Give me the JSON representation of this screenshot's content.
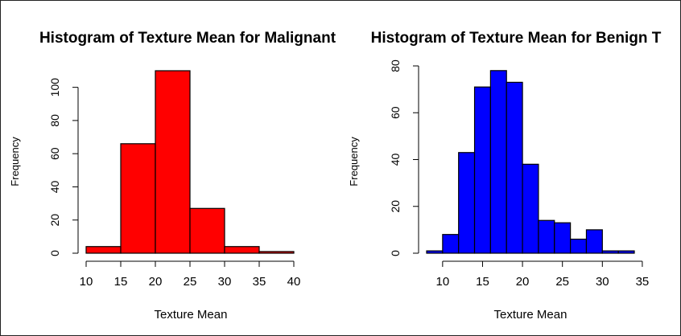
{
  "chart_data": [
    {
      "type": "bar",
      "title": "Histogram of Texture Mean for Malignant",
      "xlabel": "Texture Mean",
      "ylabel": "Frequency",
      "bins": [
        [
          10,
          15
        ],
        [
          15,
          20
        ],
        [
          20,
          25
        ],
        [
          25,
          30
        ],
        [
          30,
          35
        ],
        [
          35,
          40
        ]
      ],
      "values": [
        4,
        66,
        110,
        27,
        4,
        1
      ],
      "fill_color": "#ff0000",
      "xticks": [
        10,
        15,
        20,
        25,
        30,
        35,
        40
      ],
      "yticks": [
        0,
        20,
        40,
        60,
        80,
        100
      ],
      "xlim": [
        10,
        40
      ],
      "ylim": [
        0,
        110
      ],
      "grid": false
    },
    {
      "type": "bar",
      "title": "Histogram of Texture Mean for Benign T",
      "xlabel": "Texture Mean",
      "ylabel": "Frequency",
      "bins": [
        [
          8,
          10
        ],
        [
          10,
          12
        ],
        [
          12,
          14
        ],
        [
          14,
          16
        ],
        [
          16,
          18
        ],
        [
          18,
          20
        ],
        [
          20,
          22
        ],
        [
          22,
          24
        ],
        [
          24,
          26
        ],
        [
          26,
          28
        ],
        [
          28,
          30
        ],
        [
          30,
          32
        ],
        [
          32,
          34
        ]
      ],
      "values": [
        1,
        8,
        43,
        71,
        78,
        73,
        38,
        14,
        13,
        6,
        10,
        1,
        1
      ],
      "fill_color": "#0000ff",
      "xticks": [
        10,
        15,
        20,
        25,
        30,
        35
      ],
      "yticks": [
        0,
        20,
        40,
        60,
        80
      ],
      "xlim": [
        8,
        34
      ],
      "ylim": [
        0,
        80
      ],
      "grid": false
    }
  ]
}
